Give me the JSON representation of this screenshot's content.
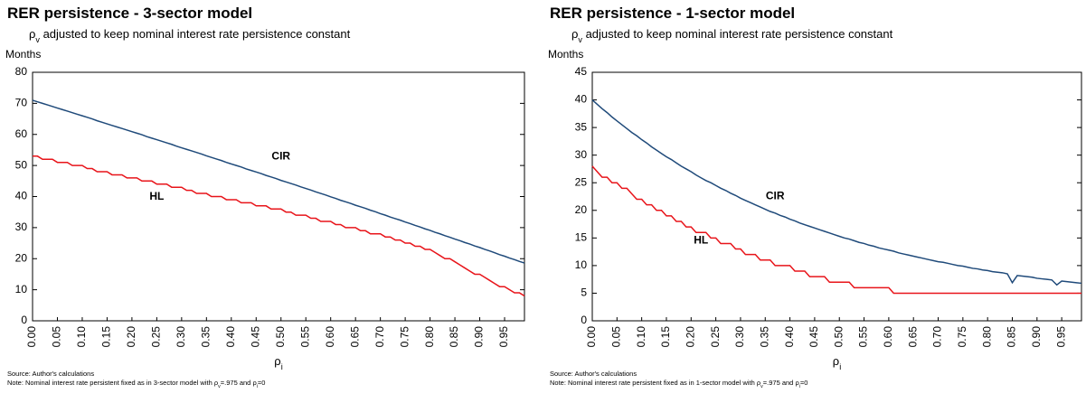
{
  "chart_data": [
    {
      "type": "line",
      "title": "RER persistence - 3-sector model",
      "subtitle": [
        {
          "text": "ρ"
        },
        {
          "text": "v",
          "sub": true
        },
        {
          "text": " adjusted to keep nominal interest rate persistence constant"
        }
      ],
      "ylabel": "Months",
      "xlabel": [
        {
          "text": "ρ"
        },
        {
          "text": "i",
          "sub": true
        }
      ],
      "source": "Source: Author's calculations",
      "note": [
        {
          "text": "Note: Nominal interest rate persistent fixed as in 3-sector model with  "
        },
        {
          "text": "ρ"
        },
        {
          "text": "v",
          "sub": true
        },
        {
          "text": "=.975 and "
        },
        {
          "text": "ρ"
        },
        {
          "text": "i",
          "sub": true
        },
        {
          "text": "=0"
        }
      ],
      "xlim": [
        0,
        0.99
      ],
      "ylim": [
        0,
        80
      ],
      "yticks": [
        0,
        10,
        20,
        30,
        40,
        50,
        60,
        70,
        80
      ],
      "xticks": [
        {
          "value": 0,
          "label": "0.00"
        },
        0.05,
        {
          "value": 0.1,
          "label": "0.10"
        },
        0.15,
        {
          "value": 0.2,
          "label": "0.20"
        },
        0.25,
        {
          "value": 0.3,
          "label": "0.30"
        },
        0.35,
        {
          "value": 0.4,
          "label": "0.40"
        },
        0.45,
        {
          "value": 0.5,
          "label": "0.50"
        },
        0.55,
        {
          "value": 0.6,
          "label": "0.60"
        },
        0.65,
        {
          "value": 0.7,
          "label": "0.70"
        },
        0.75,
        {
          "value": 0.8,
          "label": "0.80"
        },
        0.85,
        {
          "value": 0.9,
          "label": "0.90"
        },
        0.95
      ],
      "x": [
        0,
        0.01,
        0.02,
        0.03,
        0.04,
        0.05,
        0.06,
        0.07,
        0.08,
        0.09,
        0.1,
        0.11,
        0.12,
        0.13,
        0.14,
        0.15,
        0.16,
        0.17,
        0.18,
        0.19,
        0.2,
        0.21,
        0.22,
        0.23,
        0.24,
        0.25,
        0.26,
        0.27,
        0.28,
        0.29,
        0.3,
        0.31,
        0.32,
        0.33,
        0.34,
        0.35,
        0.36,
        0.37,
        0.38,
        0.39,
        0.4,
        0.41,
        0.42,
        0.43,
        0.44,
        0.45,
        0.46,
        0.47,
        0.48,
        0.49,
        0.5,
        0.51,
        0.52,
        0.53,
        0.54,
        0.55,
        0.56,
        0.57,
        0.58,
        0.59,
        0.6,
        0.61,
        0.62,
        0.63,
        0.64,
        0.65,
        0.66,
        0.67,
        0.68,
        0.69,
        0.7,
        0.71,
        0.72,
        0.73,
        0.74,
        0.75,
        0.76,
        0.77,
        0.78,
        0.79,
        0.8,
        0.81,
        0.82,
        0.83,
        0.84,
        0.85,
        0.86,
        0.87,
        0.88,
        0.89,
        0.9,
        0.91,
        0.92,
        0.93,
        0.94,
        0.95,
        0.96,
        0.97,
        0.98,
        0.99
      ],
      "series": [
        {
          "name": "CIR",
          "color": "#1f4a7a",
          "values": [
            71,
            70.5,
            70,
            69.5,
            69,
            68.5,
            68,
            67.5,
            67,
            66.5,
            66,
            65.5,
            65,
            64.4,
            63.9,
            63.4,
            62.9,
            62.4,
            61.9,
            61.4,
            60.9,
            60.4,
            59.9,
            59.3,
            58.8,
            58.3,
            57.8,
            57.3,
            56.8,
            56.2,
            55.7,
            55.2,
            54.7,
            54.2,
            53.7,
            53.1,
            52.6,
            52.1,
            51.6,
            51,
            50.5,
            50,
            49.5,
            48.9,
            48.4,
            47.9,
            47.4,
            46.8,
            46.3,
            45.8,
            45.2,
            44.7,
            44.2,
            43.7,
            43.1,
            42.6,
            42.1,
            41.5,
            41,
            40.5,
            39.9,
            39.4,
            38.8,
            38.3,
            37.8,
            37.2,
            36.7,
            36.2,
            35.6,
            35.1,
            34.5,
            34,
            33.4,
            32.9,
            32.4,
            31.8,
            31.3,
            30.7,
            30.2,
            29.6,
            29.1,
            28.5,
            28,
            27.4,
            26.9,
            26.3,
            25.8,
            25.2,
            24.7,
            24.1,
            23.6,
            23,
            22.5,
            21.9,
            21.3,
            20.8,
            20.2,
            19.7,
            19.1,
            18.6
          ]
        },
        {
          "name": "HL",
          "color": "#e8141a",
          "values": [
            53,
            53,
            52,
            52,
            52,
            51,
            51,
            51,
            50,
            50,
            50,
            49,
            49,
            48,
            48,
            48,
            47,
            47,
            47,
            46,
            46,
            46,
            45,
            45,
            45,
            44,
            44,
            44,
            43,
            43,
            43,
            42,
            42,
            41,
            41,
            41,
            40,
            40,
            40,
            39,
            39,
            39,
            38,
            38,
            38,
            37,
            37,
            37,
            36,
            36,
            36,
            35,
            35,
            34,
            34,
            34,
            33,
            33,
            32,
            32,
            32,
            31,
            31,
            30,
            30,
            30,
            29,
            29,
            28,
            28,
            28,
            27,
            27,
            26,
            26,
            25,
            25,
            24,
            24,
            23,
            23,
            22,
            21,
            20,
            20,
            19,
            18,
            17,
            16,
            15,
            15,
            14,
            13,
            12,
            11,
            11,
            10,
            9,
            9,
            8
          ]
        }
      ],
      "annotations": [
        {
          "text": "CIR",
          "x": 0.5,
          "y": 52,
          "color": "#1f4a7a"
        },
        {
          "text": "HL",
          "x": 0.25,
          "y": 39,
          "color": "#e8141a"
        }
      ]
    },
    {
      "type": "line",
      "title": "RER persistence - 1-sector model",
      "subtitle": [
        {
          "text": "ρ"
        },
        {
          "text": "v",
          "sub": true
        },
        {
          "text": " adjusted to keep nominal interest rate persistence constant"
        }
      ],
      "ylabel": "Months",
      "xlabel": [
        {
          "text": "ρ"
        },
        {
          "text": "i",
          "sub": true
        }
      ],
      "source": "Source: Author's calculations",
      "note": [
        {
          "text": "Note: Nominal interest rate persistent fixed as in 1-sector model with  "
        },
        {
          "text": "ρ"
        },
        {
          "text": "v",
          "sub": true
        },
        {
          "text": "=.975 and "
        },
        {
          "text": "ρ"
        },
        {
          "text": "i",
          "sub": true
        },
        {
          "text": "=0"
        }
      ],
      "xlim": [
        0,
        0.99
      ],
      "ylim": [
        0,
        45
      ],
      "yticks": [
        0,
        5,
        10,
        15,
        20,
        25,
        30,
        35,
        40,
        45
      ],
      "xticks": [
        {
          "value": 0,
          "label": "0.00"
        },
        0.05,
        {
          "value": 0.1,
          "label": "0.10"
        },
        0.15,
        {
          "value": 0.2,
          "label": "0.20"
        },
        0.25,
        {
          "value": 0.3,
          "label": "0.30"
        },
        0.35,
        {
          "value": 0.4,
          "label": "0.40"
        },
        0.45,
        {
          "value": 0.5,
          "label": "0.50"
        },
        0.55,
        {
          "value": 0.6,
          "label": "0.60"
        },
        0.65,
        {
          "value": 0.7,
          "label": "0.70"
        },
        0.75,
        {
          "value": 0.8,
          "label": "0.80"
        },
        0.85,
        {
          "value": 0.9,
          "label": "0.90"
        },
        0.95
      ],
      "x": [
        0,
        0.01,
        0.02,
        0.03,
        0.04,
        0.05,
        0.06,
        0.07,
        0.08,
        0.09,
        0.1,
        0.11,
        0.12,
        0.13,
        0.14,
        0.15,
        0.16,
        0.17,
        0.18,
        0.19,
        0.2,
        0.21,
        0.22,
        0.23,
        0.24,
        0.25,
        0.26,
        0.27,
        0.28,
        0.29,
        0.3,
        0.31,
        0.32,
        0.33,
        0.34,
        0.35,
        0.36,
        0.37,
        0.38,
        0.39,
        0.4,
        0.41,
        0.42,
        0.43,
        0.44,
        0.45,
        0.46,
        0.47,
        0.48,
        0.49,
        0.5,
        0.51,
        0.52,
        0.53,
        0.54,
        0.55,
        0.56,
        0.57,
        0.58,
        0.59,
        0.6,
        0.61,
        0.62,
        0.63,
        0.64,
        0.65,
        0.66,
        0.67,
        0.68,
        0.69,
        0.7,
        0.71,
        0.72,
        0.73,
        0.74,
        0.75,
        0.76,
        0.77,
        0.78,
        0.79,
        0.8,
        0.81,
        0.82,
        0.83,
        0.84,
        0.85,
        0.86,
        0.87,
        0.88,
        0.89,
        0.9,
        0.91,
        0.92,
        0.93,
        0.94,
        0.95,
        0.96,
        0.97,
        0.98,
        0.99
      ],
      "series": [
        {
          "name": "CIR",
          "color": "#1f4a7a",
          "values": [
            40,
            39.2,
            38.4,
            37.7,
            36.9,
            36.2,
            35.5,
            34.8,
            34.1,
            33.5,
            32.8,
            32.2,
            31.5,
            30.9,
            30.3,
            29.7,
            29.2,
            28.6,
            28,
            27.5,
            27,
            26.4,
            25.9,
            25.4,
            25,
            24.5,
            24,
            23.6,
            23.1,
            22.7,
            22.2,
            21.8,
            21.4,
            21,
            20.6,
            20.2,
            19.8,
            19.5,
            19.1,
            18.8,
            18.4,
            18.1,
            17.7,
            17.4,
            17.1,
            16.8,
            16.5,
            16.2,
            15.9,
            15.6,
            15.3,
            15,
            14.8,
            14.5,
            14.2,
            14,
            13.7,
            13.5,
            13.2,
            13,
            12.8,
            12.6,
            12.3,
            12.1,
            11.9,
            11.7,
            11.5,
            11.3,
            11.1,
            10.9,
            10.7,
            10.6,
            10.4,
            10.2,
            10,
            9.9,
            9.7,
            9.5,
            9.4,
            9.2,
            9.1,
            8.9,
            8.8,
            8.7,
            8.5,
            6.9,
            8.2,
            8.1,
            8,
            7.9,
            7.7,
            7.6,
            7.5,
            7.4,
            6.5,
            7.2,
            7.1,
            7,
            6.9,
            6.8
          ]
        },
        {
          "name": "HL",
          "color": "#e8141a",
          "values": [
            28,
            27,
            26,
            26,
            25,
            25,
            24,
            24,
            23,
            22,
            22,
            21,
            21,
            20,
            20,
            19,
            19,
            18,
            18,
            17,
            17,
            16,
            16,
            16,
            15,
            15,
            14,
            14,
            14,
            13,
            13,
            12,
            12,
            12,
            11,
            11,
            11,
            10,
            10,
            10,
            10,
            9,
            9,
            9,
            8,
            8,
            8,
            8,
            7,
            7,
            7,
            7,
            7,
            6,
            6,
            6,
            6,
            6,
            6,
            6,
            6,
            5,
            5,
            5,
            5,
            5,
            5,
            5,
            5,
            5,
            5,
            5,
            5,
            5,
            5,
            5,
            5,
            5,
            5,
            5,
            5,
            5,
            5,
            5,
            5,
            5,
            5,
            5,
            5,
            5,
            5,
            5,
            5,
            5,
            5,
            5,
            5,
            5,
            5,
            5
          ]
        }
      ],
      "annotations": [
        {
          "text": "CIR",
          "x": 0.37,
          "y": 22,
          "color": "#1f4a7a"
        },
        {
          "text": "HL",
          "x": 0.22,
          "y": 14,
          "color": "#e8141a"
        }
      ]
    }
  ]
}
